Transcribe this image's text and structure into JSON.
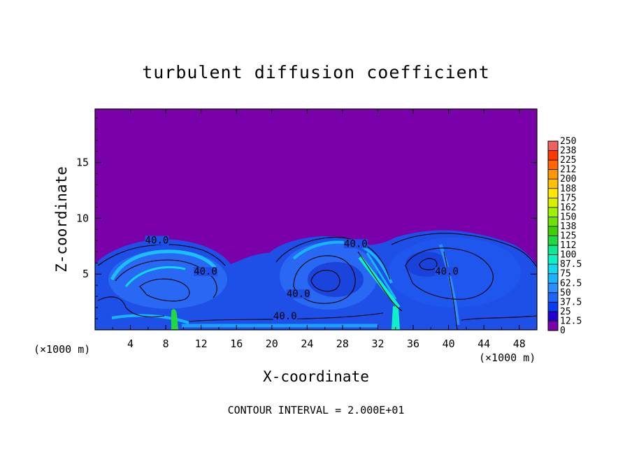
{
  "chart_data": {
    "type": "heatmap",
    "title": "turbulent diffusion coefficient",
    "xlabel": "X-coordinate",
    "ylabel": "Z-coordinate",
    "x_unit": "(×1000 m)",
    "xlim": [
      0,
      50
    ],
    "ylim": [
      0,
      19.8
    ],
    "x_ticks": [
      4,
      8,
      12,
      16,
      20,
      24,
      28,
      32,
      36,
      40,
      44,
      48
    ],
    "y_ticks": [
      5,
      10,
      15
    ],
    "colorbar": {
      "levels": [
        "0",
        "12.5",
        "25",
        "37.5",
        "50",
        "62.5",
        "75",
        "87.5",
        "100",
        "112",
        "125",
        "138",
        "150",
        "162",
        "175",
        "188",
        "200",
        "212",
        "225",
        "238",
        "250"
      ],
      "colors": [
        "#7a00aa",
        "#2200d0",
        "#0a3cf0",
        "#1e64f8",
        "#2d8cff",
        "#19b4ff",
        "#10d8f0",
        "#10f0c8",
        "#10e890",
        "#20d840",
        "#40d000",
        "#70e000",
        "#a0f000",
        "#d8f000",
        "#ffe800",
        "#ffc000",
        "#ff9800",
        "#ff6800",
        "#ff3800",
        "#f06060"
      ]
    },
    "contour_labels": [
      {
        "text": "40.0",
        "x": 7.0,
        "z": 7.8
      },
      {
        "text": "40.0",
        "x": 12.5,
        "z": 5.0
      },
      {
        "text": "40.0",
        "x": 23.0,
        "z": 3.0
      },
      {
        "text": "40.0",
        "x": 21.5,
        "z": 1.0
      },
      {
        "text": "40.0",
        "x": 29.5,
        "z": 7.5
      },
      {
        "text": "40.0",
        "x": 39.8,
        "z": 5.0
      }
    ],
    "contour_interval_note": "CONTOUR INTERVAL = 2.000E+01"
  }
}
